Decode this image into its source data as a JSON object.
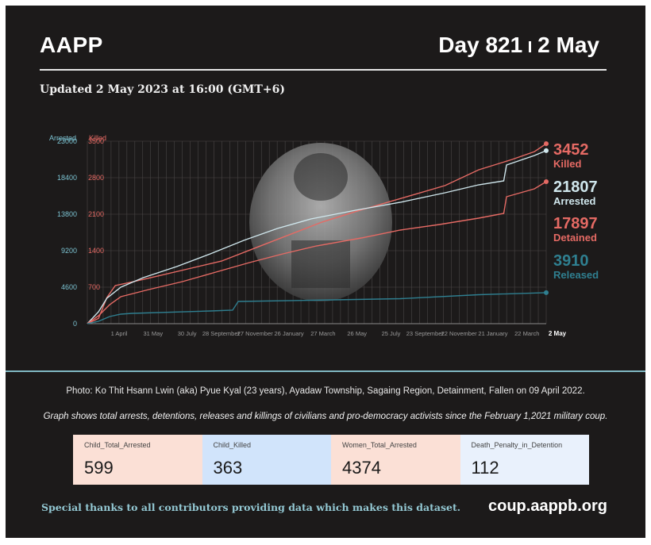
{
  "header": {
    "org": "AAPP",
    "day_label": "Day 821",
    "date_label": "2 May",
    "updated": "Updated 2 May 2023 at 16:00 (GMT+6)"
  },
  "colors": {
    "killed": "#e56a64",
    "arrested": "#cfe6ec",
    "detained": "#e56a64",
    "released": "#2f7f90",
    "axis_left": "#7cc3d2",
    "axis_right": "#e56a64",
    "grid": "#4a4747"
  },
  "chart_data": {
    "type": "line",
    "axes": {
      "left_title": "Arrested",
      "right_title": "Killed",
      "left_ticks": [
        "23000",
        "18400",
        "13800",
        "9200",
        "4600",
        "0"
      ],
      "right_ticks": [
        "3500",
        "2800",
        "2100",
        "1400",
        "700"
      ],
      "left_ylim": [
        0,
        23000
      ],
      "right_ylim": [
        0,
        3500
      ],
      "x_ticks": [
        "1 April",
        "31 May",
        "30 July",
        "28 September",
        "27 November",
        "26 January",
        "27 March",
        "26 May",
        "25 July",
        "23 September",
        "22 November",
        "21 January",
        "22 March"
      ],
      "x_end_label": "2 May",
      "xlim": [
        0,
        821
      ],
      "grid": true
    },
    "series": [
      {
        "name": "Killed",
        "axis": "right",
        "x": [
          0,
          20,
          35,
          50,
          80,
          120,
          180,
          240,
          300,
          360,
          420,
          480,
          560,
          640,
          700,
          760,
          800,
          821
        ],
        "values": [
          0,
          100,
          500,
          730,
          800,
          900,
          1050,
          1200,
          1450,
          1700,
          1950,
          2150,
          2400,
          2650,
          2950,
          3150,
          3300,
          3452
        ],
        "end_value": "3452"
      },
      {
        "name": "Arrested",
        "axis": "left",
        "x": [
          0,
          20,
          35,
          60,
          100,
          160,
          220,
          280,
          340,
          400,
          480,
          560,
          640,
          700,
          745,
          750,
          800,
          821
        ],
        "values": [
          0,
          1500,
          3200,
          4600,
          5800,
          7200,
          8800,
          10500,
          12000,
          13200,
          14300,
          15300,
          16500,
          17500,
          18000,
          20000,
          21200,
          21807
        ],
        "end_value": "21807"
      },
      {
        "name": "Detained",
        "axis": "left",
        "x": [
          0,
          20,
          40,
          60,
          110,
          170,
          230,
          290,
          350,
          410,
          490,
          560,
          630,
          700,
          745,
          750,
          800,
          821
        ],
        "values": [
          0,
          1000,
          2400,
          3400,
          4300,
          5300,
          6500,
          7700,
          8800,
          9800,
          10800,
          11800,
          12500,
          13300,
          13900,
          16000,
          17000,
          17897
        ],
        "end_value": "17897"
      },
      {
        "name": "Released",
        "axis": "left",
        "x": [
          0,
          20,
          40,
          60,
          80,
          220,
          260,
          270,
          400,
          560,
          700,
          821
        ],
        "values": [
          0,
          300,
          900,
          1200,
          1300,
          1600,
          1700,
          2800,
          2950,
          3150,
          3650,
          3910
        ],
        "end_value": "3910"
      }
    ]
  },
  "footer": {
    "photo_credit": "Photo: Ko Thit Hsann Lwin (aka) Pyue Kyal (23 years), Ayadaw Township, Sagaing Region, Detainment,  Fallen on 09 April 2022.",
    "description": "Graph shows total arrests, detentions, releases and killings of civilians and pro-democracy activists since the February 1,2021 military coup.",
    "stats": [
      {
        "label": "Child_Total_Arrested",
        "value": "599",
        "color": "#fbe0d6"
      },
      {
        "label": "Child_Killed",
        "value": "363",
        "color": "#d1e4fb"
      },
      {
        "label": "Women_Total_Arrested",
        "value": "4374",
        "color": "#fbe0d6"
      },
      {
        "label": "Death_Penalty_in_Detention",
        "value": "112",
        "color": "#e9f1fc"
      }
    ],
    "thanks": "Special thanks to all contributors providing data which makes this dataset.",
    "url": "coup.aappb.org"
  }
}
